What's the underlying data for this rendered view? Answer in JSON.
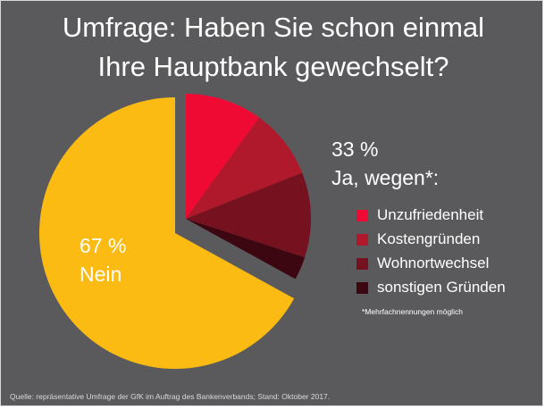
{
  "title": {
    "line1": "Umfrage: Haben Sie schon einmal",
    "line2": "Ihre Hauptbank gewechselt?"
  },
  "chart_data": {
    "type": "pie",
    "title": "Umfrage: Haben Sie schon einmal Ihre Hauptbank gewechselt?",
    "slices": [
      {
        "label": "Nein",
        "value": 67,
        "color": "#fcbb12"
      },
      {
        "label": "Unzufriedenheit",
        "value": 10,
        "color": "#ee0a33",
        "group": "Ja"
      },
      {
        "label": "Kostengründen",
        "value": 9,
        "color": "#b0192c",
        "group": "Ja"
      },
      {
        "label": "Wohnortwechsel",
        "value": 11,
        "color": "#761220",
        "group": "Ja"
      },
      {
        "label": "sonstigen Gründen",
        "value": 3,
        "color": "#3d0711",
        "group": "Ja"
      }
    ],
    "yes_total": 33,
    "no_total": 67,
    "legend_position": "right"
  },
  "pie_label": {
    "percent": "67 %",
    "text": "Nein"
  },
  "ja_label": {
    "percent": "33 %",
    "text": "Ja, wegen*:"
  },
  "legend": [
    {
      "label": "Unzufriedenheit",
      "color": "#ee0a33"
    },
    {
      "label": "Kostengründen",
      "color": "#b0192c"
    },
    {
      "label": "Wohnortwechsel",
      "color": "#761220"
    },
    {
      "label": "sonstigen Gründen",
      "color": "#3d0711"
    }
  ],
  "footnote": "*Mehrfachnennungen möglich",
  "source": "Quelle: repräsentative Umfrage der GfK im Auftrag des Bankenverbands; Stand: Oktober 2017."
}
